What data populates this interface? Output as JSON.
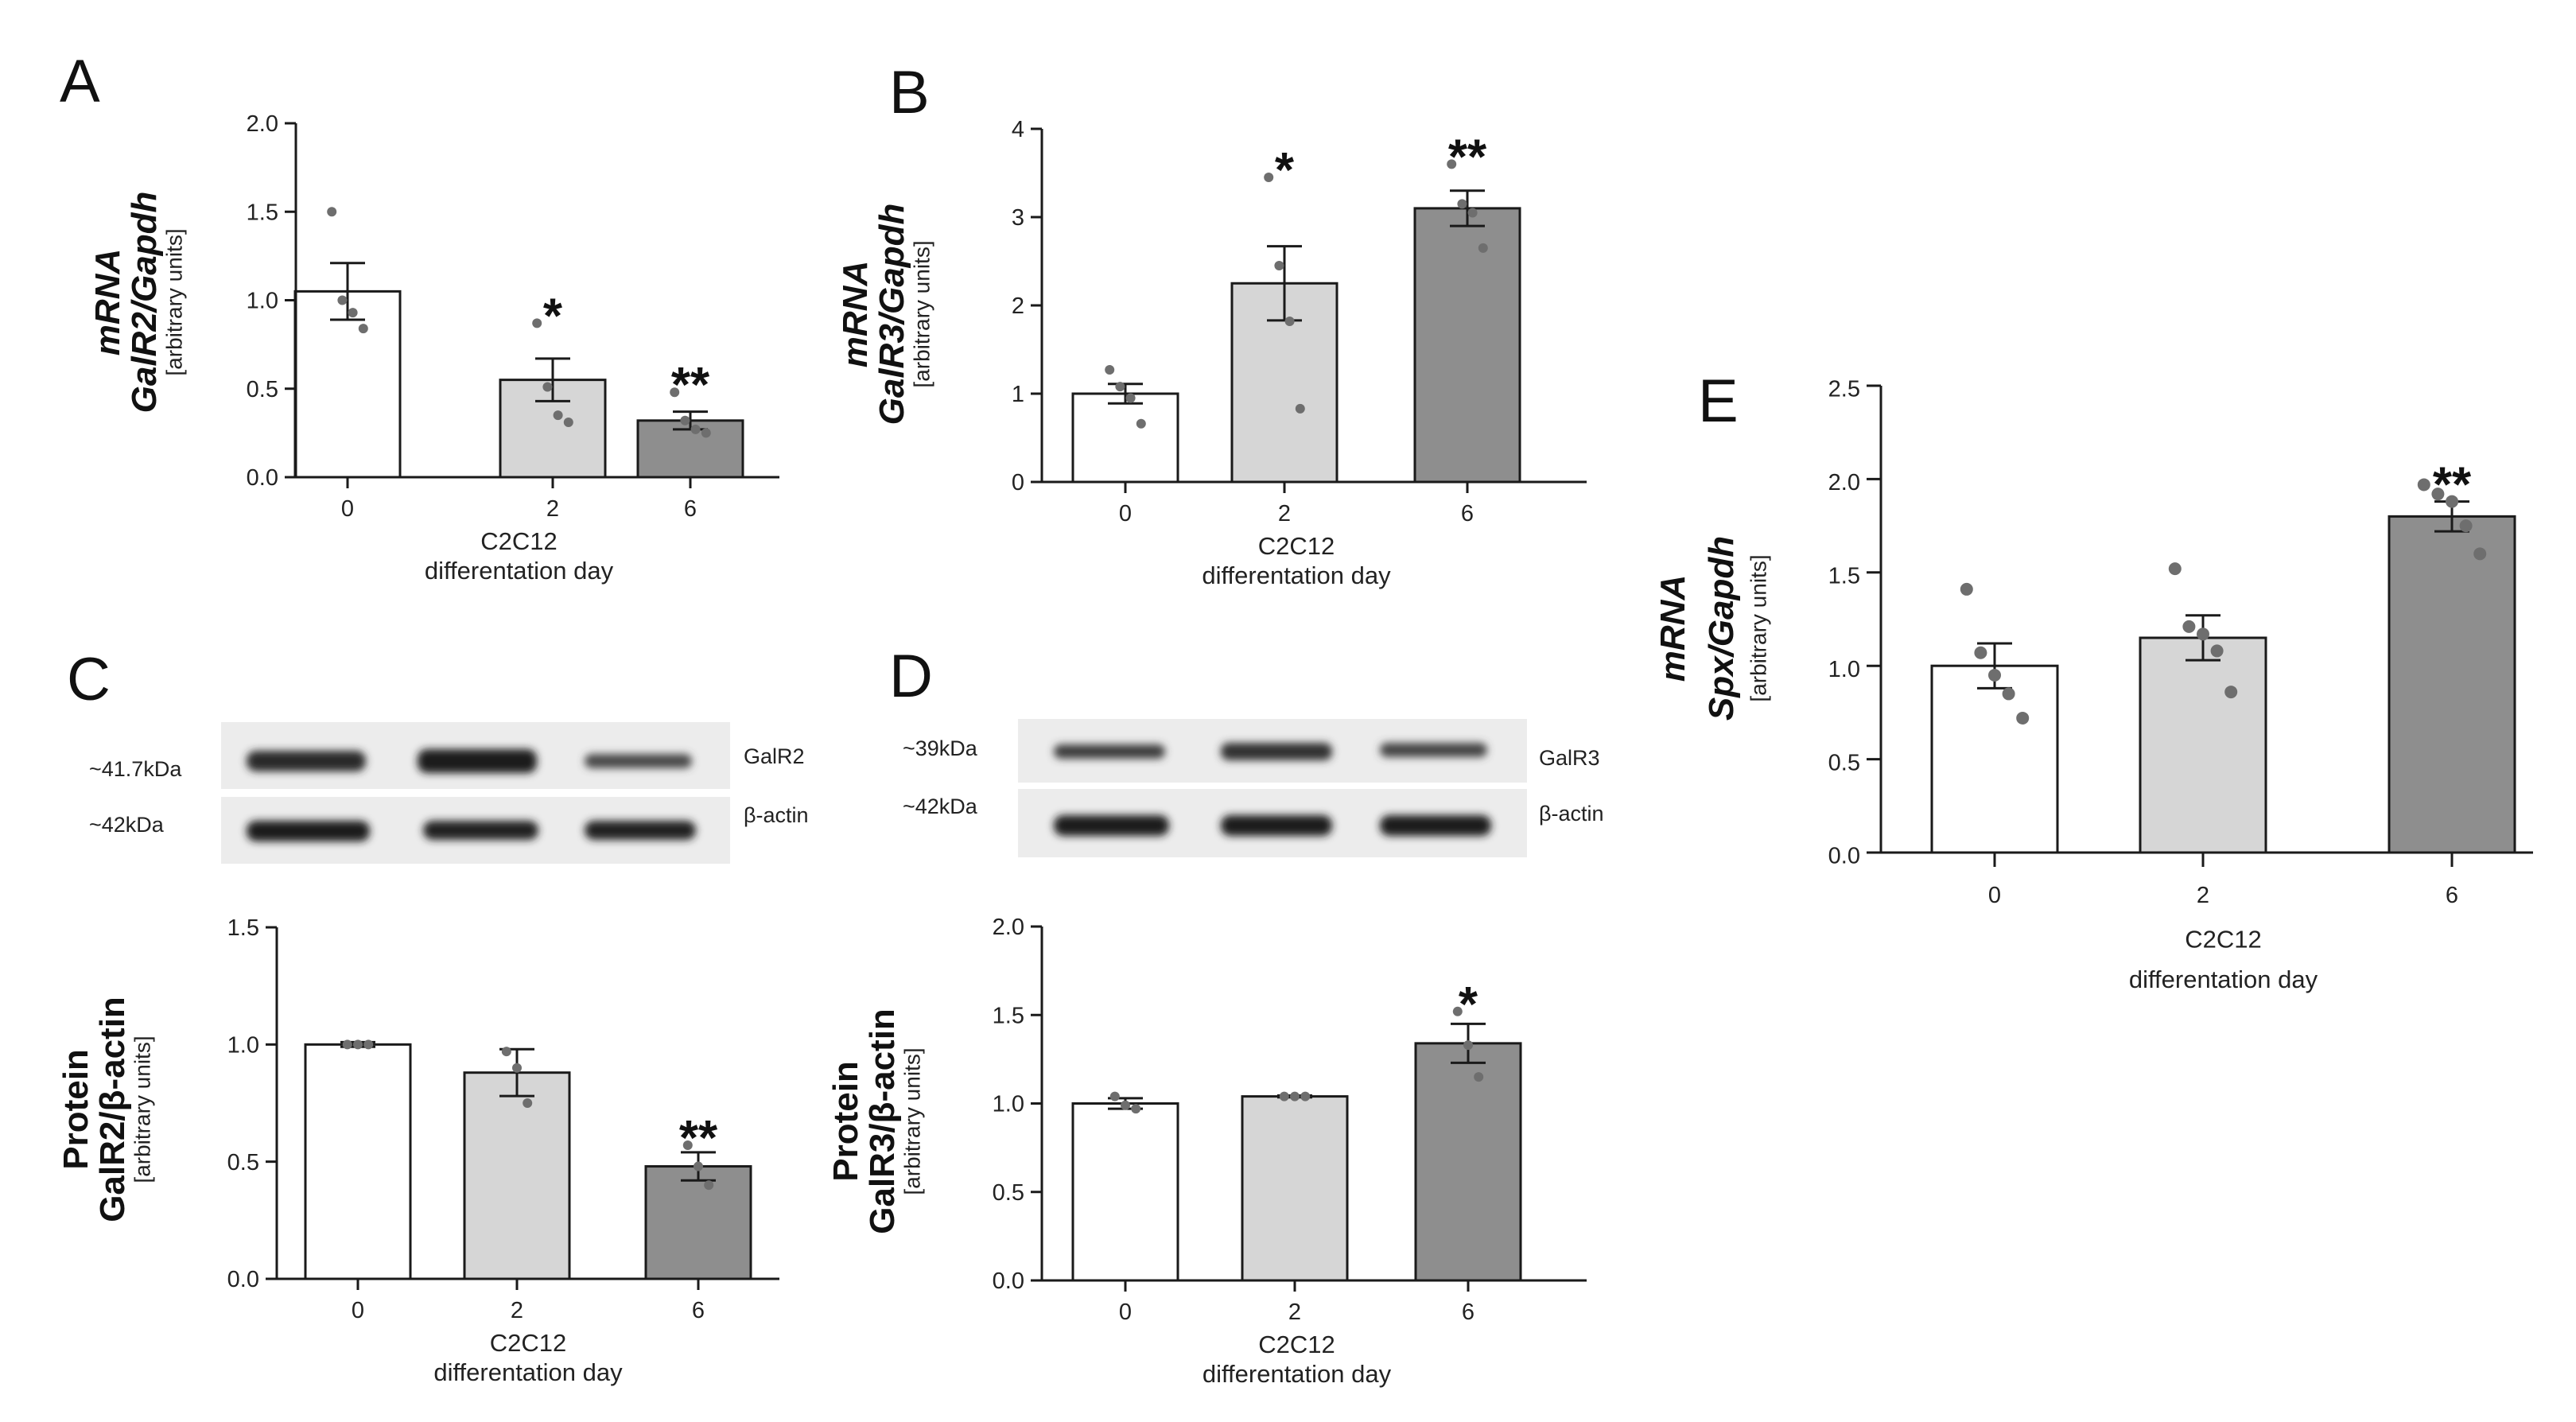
{
  "chart_data": [
    {
      "id": "A",
      "type": "bar",
      "panel_letter": "A",
      "categories": [
        "0",
        "2",
        "6"
      ],
      "values": [
        1.05,
        0.55,
        0.32
      ],
      "sem": [
        0.16,
        0.12,
        0.05
      ],
      "points": [
        [
          1.5,
          1.0,
          0.93,
          0.84
        ],
        [
          0.87,
          0.51,
          0.35,
          0.31
        ],
        [
          0.48,
          0.32,
          0.27,
          0.25
        ]
      ],
      "significance": [
        "",
        "*",
        "**"
      ],
      "ylim": [
        0,
        2.0
      ],
      "yticks": [
        "0.0",
        "0.5",
        "1.0",
        "1.5",
        "2.0"
      ],
      "ylabel_main": "mRNA",
      "ylabel_sub": "GalR2/Gapdh",
      "ylabel_units": "[arbitrary units]",
      "xlabel_line1": "C2C12",
      "xlabel_line2": "differentation day",
      "bar_colors": [
        "#ffffff",
        "#d6d6d6",
        "#8e8e8e"
      ]
    },
    {
      "id": "B",
      "type": "bar",
      "panel_letter": "B",
      "categories": [
        "0",
        "2",
        "6"
      ],
      "values": [
        1.0,
        2.25,
        3.1
      ],
      "sem": [
        0.11,
        0.42,
        0.2
      ],
      "points": [
        [
          1.27,
          1.08,
          0.95,
          0.66
        ],
        [
          3.45,
          2.45,
          1.82,
          0.83
        ],
        [
          3.6,
          3.15,
          3.05,
          2.65
        ]
      ],
      "significance": [
        "",
        "*",
        "**"
      ],
      "ylim": [
        0,
        4
      ],
      "yticks": [
        "0",
        "1",
        "2",
        "3",
        "4"
      ],
      "ylabel_main": "mRNA",
      "ylabel_sub": "GalR3/Gapdh",
      "ylabel_units": "[arbitrary units]",
      "xlabel_line1": "C2C12",
      "xlabel_line2": "differentation day",
      "bar_colors": [
        "#ffffff",
        "#d6d6d6",
        "#8e8e8e"
      ]
    },
    {
      "id": "C",
      "type": "bar",
      "panel_letter": "C",
      "categories": [
        "0",
        "2",
        "6"
      ],
      "values": [
        1.0,
        0.88,
        0.48
      ],
      "sem": [
        0.01,
        0.1,
        0.06
      ],
      "points": [
        [
          1.0,
          1.0,
          1.0
        ],
        [
          0.97,
          0.9,
          0.75
        ],
        [
          0.57,
          0.48,
          0.4
        ]
      ],
      "significance": [
        "",
        "",
        "**"
      ],
      "ylim": [
        0,
        1.5
      ],
      "yticks": [
        "0.0",
        "0.5",
        "1.0",
        "1.5"
      ],
      "ylabel_main": "Protein",
      "ylabel_sub": "GalR2/β-actin",
      "ylabel_units": "[arbitrary units]",
      "xlabel_line1": "C2C12",
      "xlabel_line2": "differentation day",
      "bar_colors": [
        "#ffffff",
        "#d6d6d6",
        "#8e8e8e"
      ]
    },
    {
      "id": "D",
      "type": "bar",
      "panel_letter": "D",
      "categories": [
        "0",
        "2",
        "6"
      ],
      "values": [
        1.0,
        1.04,
        1.34
      ],
      "sem": [
        0.03,
        0.005,
        0.11
      ],
      "points": [
        [
          1.04,
          0.99,
          0.97
        ],
        [
          1.04,
          1.04,
          1.04
        ],
        [
          1.52,
          1.33,
          1.15
        ]
      ],
      "significance": [
        "",
        "",
        "*"
      ],
      "ylim": [
        0,
        2.0
      ],
      "yticks": [
        "0.0",
        "0.5",
        "1.0",
        "1.5",
        "2.0"
      ],
      "ylabel_main": "Protein",
      "ylabel_sub": "GalR3/β-actin",
      "ylabel_units": "[arbitrary units]",
      "xlabel_line1": "C2C12",
      "xlabel_line2": "differentation day",
      "bar_colors": [
        "#ffffff",
        "#d6d6d6",
        "#8e8e8e"
      ]
    },
    {
      "id": "E",
      "type": "bar",
      "panel_letter": "E",
      "categories": [
        "0",
        "2",
        "6"
      ],
      "values": [
        1.0,
        1.15,
        1.8
      ],
      "sem": [
        0.12,
        0.12,
        0.08
      ],
      "points": [
        [
          1.41,
          1.07,
          0.95,
          0.85,
          0.72
        ],
        [
          1.52,
          1.21,
          1.17,
          1.08,
          0.86
        ],
        [
          1.97,
          1.92,
          1.88,
          1.75,
          1.6
        ]
      ],
      "significance": [
        "",
        "",
        "**"
      ],
      "ylim": [
        0,
        2.5
      ],
      "yticks": [
        "0.0",
        "0.5",
        "1.0",
        "1.5",
        "2.0",
        "2.5"
      ],
      "ylabel_main": "mRNA",
      "ylabel_sub": "Spx/Gapdh",
      "ylabel_units": "[arbitrary units]",
      "xlabel_line1": "C2C12",
      "xlabel_line2": "differentation day",
      "bar_colors": [
        "#ffffff",
        "#d6d6d6",
        "#8e8e8e"
      ]
    }
  ],
  "blots": {
    "C": {
      "target_label": "GalR2",
      "target_size": "~41.7kDa",
      "control_label": "β-actin",
      "control_size": "~42kDa"
    },
    "D": {
      "target_label": "GalR3",
      "target_size": "~39kDa",
      "control_label": "β-actin",
      "control_size": "~42kDa"
    }
  }
}
